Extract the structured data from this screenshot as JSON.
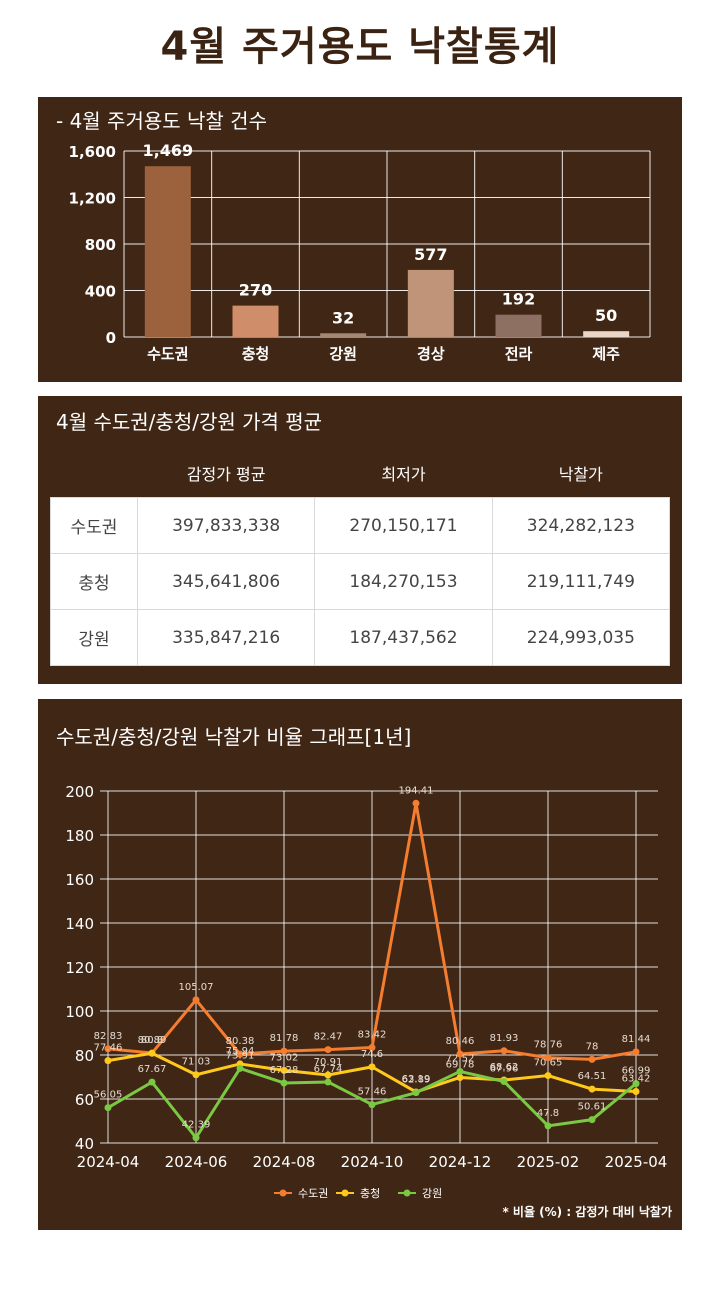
{
  "page_title": "4월 주거용도 낙찰통계",
  "bar_panel": {
    "title": "- 4월 주거용도 낙찰 건수"
  },
  "table_panel": {
    "title": "4월 수도권/충청/강원 가격 평균",
    "columns": [
      "감정가 평균",
      "최저가",
      "낙찰가"
    ],
    "rows": [
      {
        "label": "수도권",
        "values": [
          "397,833,338",
          "270,150,171",
          "324,282,123"
        ]
      },
      {
        "label": "충청",
        "values": [
          "345,641,806",
          "184,270,153",
          "219,111,749"
        ]
      },
      {
        "label": "강원",
        "values": [
          "335,847,216",
          "187,437,562",
          "224,993,035"
        ]
      }
    ]
  },
  "line_panel": {
    "title": "수도권/충청/강원 낙찰가 비율 그래프[1년]",
    "note": "* 비율 (%) : 감정가 대비 낙찰가"
  },
  "chart_data": [
    {
      "type": "bar",
      "title": "- 4월 주거용도 낙찰 건수",
      "categories": [
        "수도권",
        "충청",
        "강원",
        "경상",
        "전라",
        "제주"
      ],
      "values": [
        1469,
        270,
        32,
        577,
        192,
        50
      ],
      "data_labels": [
        "1,469",
        "270",
        "32",
        "577",
        "192",
        "50"
      ],
      "yticks": [
        "0",
        "400",
        "800",
        "1,200",
        "1,600"
      ],
      "ylim": [
        0,
        1600
      ],
      "grid": true,
      "colors": [
        "#9c613d",
        "#cf8e69",
        "#a48875",
        "#bf9479",
        "#8d7062",
        "#e9d6c8"
      ]
    },
    {
      "type": "line",
      "title": "수도권/충청/강원 낙찰가 비율 그래프[1년]",
      "x": [
        "2024-04",
        "2024-05",
        "2024-06",
        "2024-07",
        "2024-08",
        "2024-09",
        "2024-10",
        "2024-11",
        "2024-12",
        "2025-01",
        "2025-02",
        "2025-03",
        "2025-04"
      ],
      "xticks": [
        "2024-04",
        "2024-06",
        "2024-08",
        "2024-10",
        "2024-12",
        "2025-02",
        "2025-04"
      ],
      "yticks": [
        "40",
        "60",
        "80",
        "100",
        "120",
        "140",
        "160",
        "180",
        "200"
      ],
      "ylim": [
        40,
        200
      ],
      "grid": true,
      "legend": "bottom-center",
      "series": [
        {
          "name": "수도권",
          "color": "#f47d2f",
          "values": [
            82.83,
            80.89,
            105.07,
            80.38,
            81.78,
            82.47,
            83.42,
            194.41,
            80.46,
            81.93,
            78.76,
            78,
            81.44
          ]
        },
        {
          "name": "충청",
          "color": "#ffc91c",
          "values": [
            77.46,
            80.8,
            71.03,
            75.94,
            73.02,
            70.91,
            74.6,
            63.19,
            69.78,
            68.62,
            70.65,
            64.51,
            63.42
          ]
        },
        {
          "name": "강원",
          "color": "#7ac943",
          "values": [
            56.05,
            67.67,
            42.39,
            73.91,
            67.28,
            67.74,
            57.46,
            62.89,
            72.52,
            67.96,
            47.8,
            50.61,
            66.99
          ]
        }
      ]
    }
  ]
}
